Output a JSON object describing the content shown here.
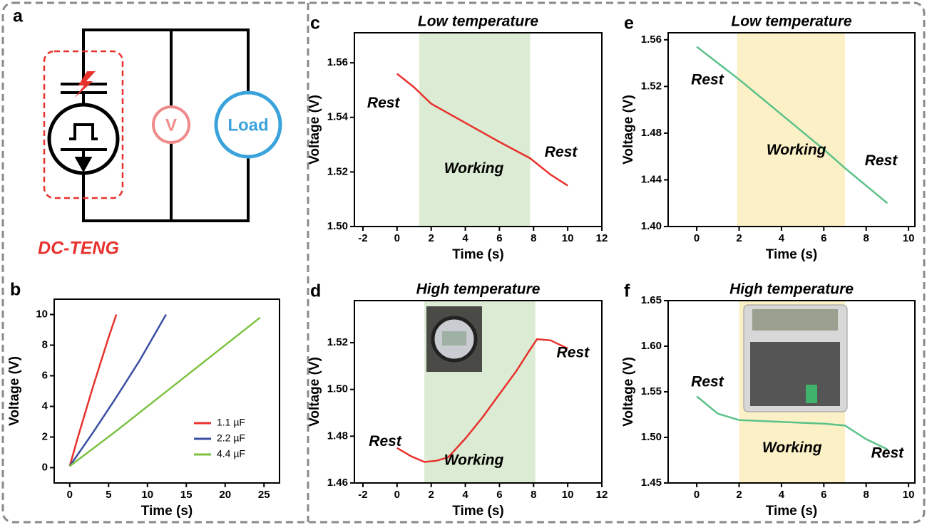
{
  "diagram": {
    "panel": "a",
    "voltmeter": "V",
    "load": "Load",
    "name": "DC-TENG"
  },
  "chart_data": [
    {
      "type": "line",
      "panel": "b",
      "xlabel": "Time (s)",
      "ylabel": "Voltage (V)",
      "xlim": [
        -2,
        27
      ],
      "xticks": [
        0,
        5,
        10,
        15,
        20,
        25
      ],
      "ylim": [
        -1,
        11
      ],
      "yticks": [
        0,
        2,
        4,
        6,
        8,
        10
      ],
      "legend": "lower right",
      "series": [
        {
          "name": "1.1 µF",
          "color": "#e8322e",
          "x": [
            0,
            1,
            2,
            3,
            4,
            5,
            6
          ],
          "values": [
            0.1,
            1.9,
            3.6,
            5.3,
            6.9,
            8.5,
            10
          ]
        },
        {
          "name": "2.2 µF",
          "color": "#3a4fa3",
          "x": [
            0,
            3,
            6,
            9,
            12.4
          ],
          "values": [
            0.1,
            2.3,
            4.6,
            7.0,
            10
          ]
        },
        {
          "name": "4.4 µF",
          "color": "#7cc242",
          "x": [
            0,
            6,
            12,
            18,
            24.5
          ],
          "values": [
            0.1,
            2.4,
            4.8,
            7.2,
            9.8
          ]
        }
      ]
    },
    {
      "type": "line",
      "panel": "c",
      "title": "Low temperature",
      "xlabel": "Time (s)",
      "ylabel": "Voltage (V)",
      "xlim": [
        -2.5,
        12
      ],
      "xticks": [
        -2,
        0,
        2,
        4,
        6,
        8,
        10,
        12
      ],
      "ylim": [
        1.5,
        1.571
      ],
      "yticks": [
        {
          "value": 1.5,
          "label": "1.50"
        },
        1.52,
        1.54,
        1.56
      ],
      "shaded_region": {
        "x": [
          1.3,
          7.8
        ],
        "color": "#dcebd3"
      },
      "x": [
        0,
        1,
        2,
        4,
        6,
        7.8,
        9,
        10
      ],
      "series": [
        {
          "color": "#e8322e",
          "values": [
            1.556,
            1.551,
            1.545,
            1.538,
            1.531,
            1.525,
            1.519,
            1.515
          ]
        }
      ],
      "annotations": [
        {
          "text": "Rest",
          "x": -0.8,
          "y": 1.545
        },
        {
          "text": "Working",
          "x": 4.5,
          "y": 1.521
        },
        {
          "text": "Rest",
          "x": 9.6,
          "y": 1.527
        }
      ]
    },
    {
      "type": "line",
      "panel": "d",
      "title": "High temperature",
      "xlabel": "Time (s)",
      "ylabel": "Voltage (V)",
      "xlim": [
        -2.5,
        12
      ],
      "xticks": [
        -2,
        0,
        2,
        4,
        6,
        8,
        10,
        12
      ],
      "ylim": [
        1.46,
        1.538
      ],
      "yticks": [
        1.46,
        1.48,
        {
          "value": 1.5,
          "label": "1.50"
        },
        1.52
      ],
      "shaded_region": {
        "x": [
          1.6,
          8.1
        ],
        "color": "#dcebd3"
      },
      "x": [
        0,
        0.8,
        1.6,
        2.3,
        3,
        4,
        5,
        6,
        7,
        7.7,
        8.2,
        9,
        10
      ],
      "series": [
        {
          "color": "#e8322e",
          "values": [
            1.475,
            1.4715,
            1.469,
            1.4695,
            1.471,
            1.479,
            1.488,
            1.498,
            1.508,
            1.516,
            1.5215,
            1.521,
            1.5175
          ]
        }
      ],
      "annotations": [
        {
          "text": "Rest",
          "x": -0.7,
          "y": 1.4775
        },
        {
          "text": "Working",
          "x": 4.5,
          "y": 1.4695
        },
        {
          "text": "Rest",
          "x": 10.3,
          "y": 1.5155
        }
      ]
    },
    {
      "type": "line",
      "panel": "e",
      "title": "Low temperature",
      "xlabel": "Time (s)",
      "ylabel": "Voltage (V)",
      "xlim": [
        -1.35,
        10.3
      ],
      "xticks": [
        0,
        2,
        4,
        6,
        8,
        10
      ],
      "ylim": [
        1.4,
        1.566
      ],
      "yticks": [
        {
          "value": 1.4,
          "label": "1.40"
        },
        1.44,
        1.48,
        1.52,
        1.56
      ],
      "shaded_region": {
        "x": [
          1.9,
          7
        ],
        "color": "#fbf0c6"
      },
      "x": [
        0,
        1,
        2,
        3,
        4,
        5,
        6,
        7,
        8,
        9
      ],
      "series": [
        {
          "color": "#5cc28a",
          "values": [
            1.554,
            1.54,
            1.526,
            1.511,
            1.496,
            1.481,
            1.466,
            1.45,
            1.435,
            1.42
          ]
        }
      ],
      "annotations": [
        {
          "text": "Rest",
          "x": 0.5,
          "y": 1.525
        },
        {
          "text": "Working",
          "x": 4.7,
          "y": 1.465
        },
        {
          "text": "Rest",
          "x": 8.7,
          "y": 1.456
        }
      ]
    },
    {
      "type": "line",
      "panel": "f",
      "title": "High temperature",
      "xlabel": "Time (s)",
      "ylabel": "Voltage (V)",
      "xlim": [
        -1.35,
        10.3
      ],
      "xticks": [
        0,
        2,
        4,
        6,
        8,
        10
      ],
      "ylim": [
        1.45,
        1.65
      ],
      "yticks": [
        1.45,
        {
          "value": 1.5,
          "label": "1.50"
        },
        1.55,
        {
          "value": 1.6,
          "label": "1.60"
        },
        1.65
      ],
      "shaded_region": {
        "x": [
          2,
          7
        ],
        "color": "#fbf0c6"
      },
      "x": [
        0,
        1,
        2,
        4,
        6,
        7,
        8,
        9
      ],
      "series": [
        {
          "color": "#5cc28a",
          "values": [
            1.545,
            1.526,
            1.519,
            1.517,
            1.515,
            1.513,
            1.498,
            1.487
          ]
        }
      ],
      "annotations": [
        {
          "text": "Rest",
          "x": 0.5,
          "y": 1.56
        },
        {
          "text": "Working",
          "x": 4.5,
          "y": 1.488
        },
        {
          "text": "Rest",
          "x": 9,
          "y": 1.482
        }
      ]
    }
  ]
}
